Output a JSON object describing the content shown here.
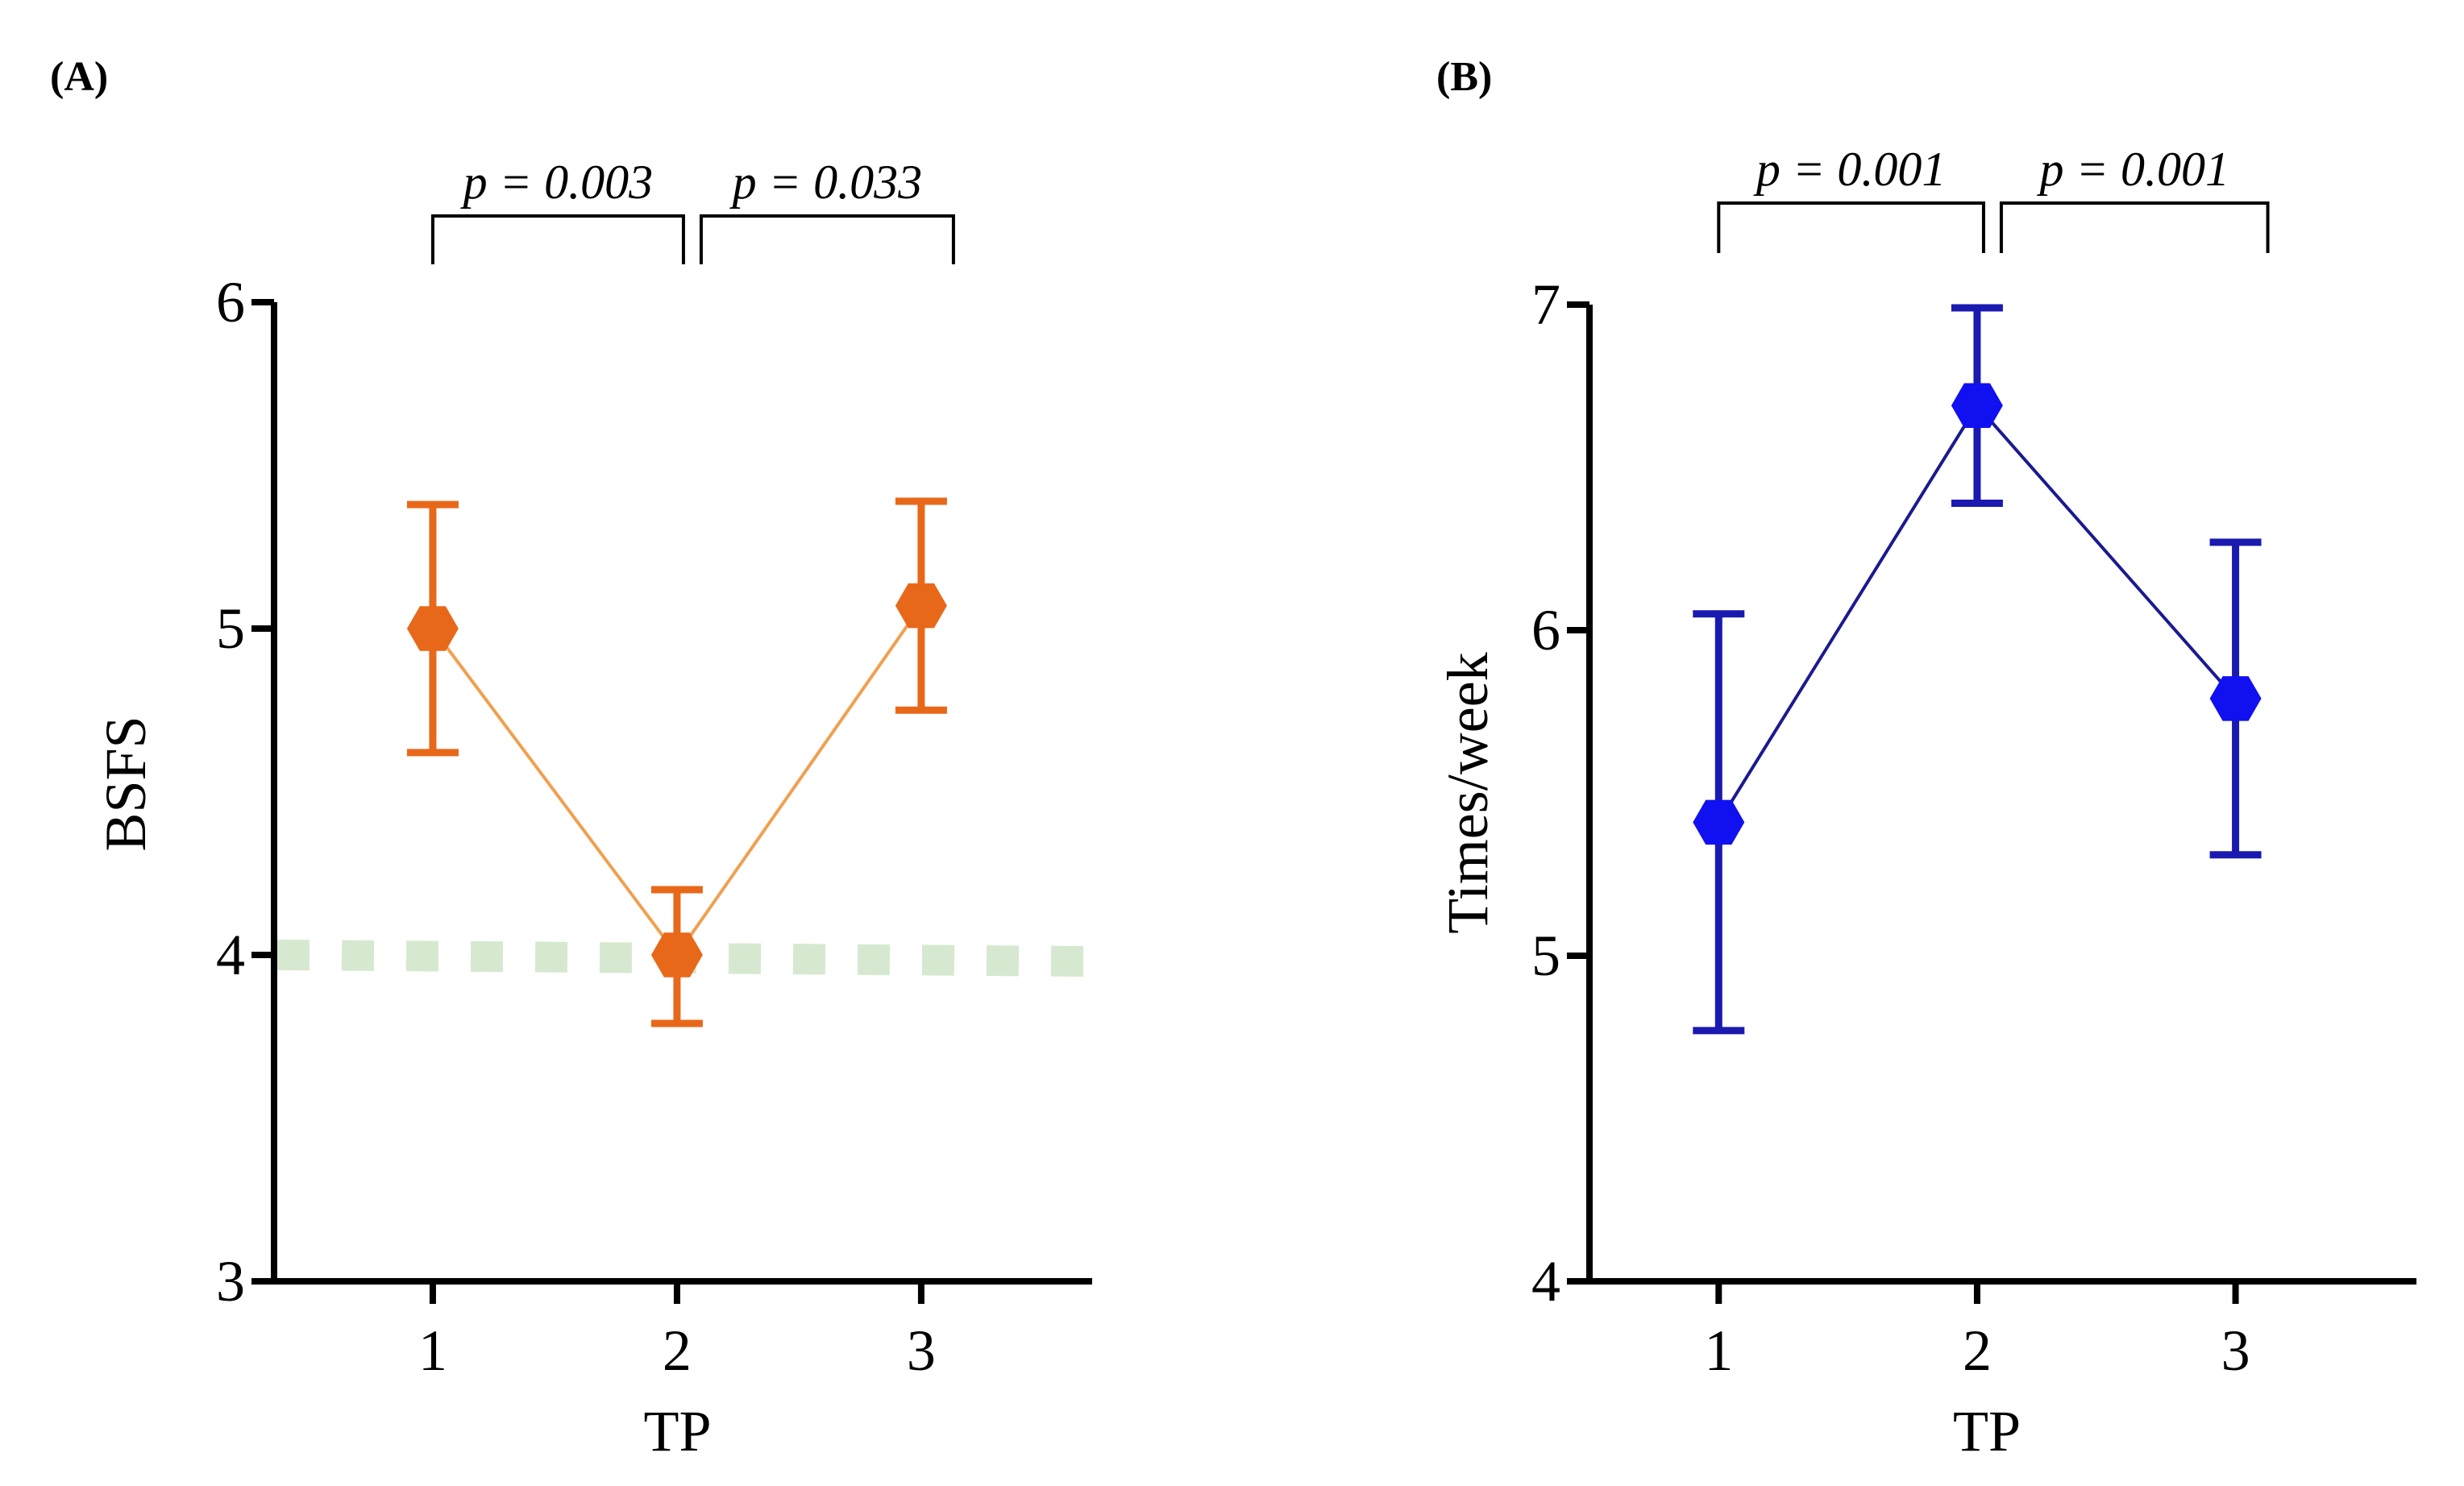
{
  "chart_data": [
    {
      "type": "line",
      "panel_label": "(A)",
      "xlabel": "TP",
      "ylabel": "BSFS",
      "x": [
        1,
        2,
        3
      ],
      "x_tick_labels": [
        "1",
        "2",
        "3"
      ],
      "xlim": [
        0.35,
        3.7
      ],
      "ylim": [
        3,
        6
      ],
      "y_ticks": [
        3,
        4,
        5,
        6
      ],
      "y_tick_labels": [
        "3",
        "4",
        "5",
        "6"
      ],
      "series": [
        {
          "name": "BSFS",
          "values": [
            5.0,
            4.0,
            5.07
          ],
          "err_low": [
            4.62,
            3.79,
            4.75
          ],
          "err_high": [
            5.38,
            4.2,
            5.39
          ],
          "color": "#E8681A",
          "line_color": "#F0A050"
        }
      ],
      "reference_line": {
        "y": 4,
        "color": "#D6E9D0",
        "style": "dashed"
      },
      "comparisons": [
        {
          "from": 1,
          "to": 2,
          "label": "p = 0.003"
        },
        {
          "from": 2,
          "to": 3,
          "label": "p = 0.033"
        }
      ]
    },
    {
      "type": "line",
      "panel_label": "(B)",
      "xlabel": "TP",
      "ylabel": "Times/week",
      "x": [
        1,
        2,
        3
      ],
      "x_tick_labels": [
        "1",
        "2",
        "3"
      ],
      "xlim": [
        0.5,
        3.7
      ],
      "ylim": [
        4,
        7
      ],
      "y_ticks": [
        4,
        5,
        6,
        7
      ],
      "y_tick_labels": [
        "4",
        "5",
        "6",
        "7"
      ],
      "series": [
        {
          "name": "Times/week",
          "values": [
            5.41,
            6.69,
            5.79
          ],
          "err_low": [
            4.77,
            6.39,
            5.31
          ],
          "err_high": [
            6.05,
            6.99,
            6.27
          ],
          "color": "#1A1AB0",
          "marker_color": "#1010F0",
          "line_color": "#1A1A90"
        }
      ],
      "comparisons": [
        {
          "from": 1,
          "to": 2,
          "label": "p = 0.001"
        },
        {
          "from": 2,
          "to": 3,
          "label": "p = 0.001"
        }
      ]
    }
  ]
}
